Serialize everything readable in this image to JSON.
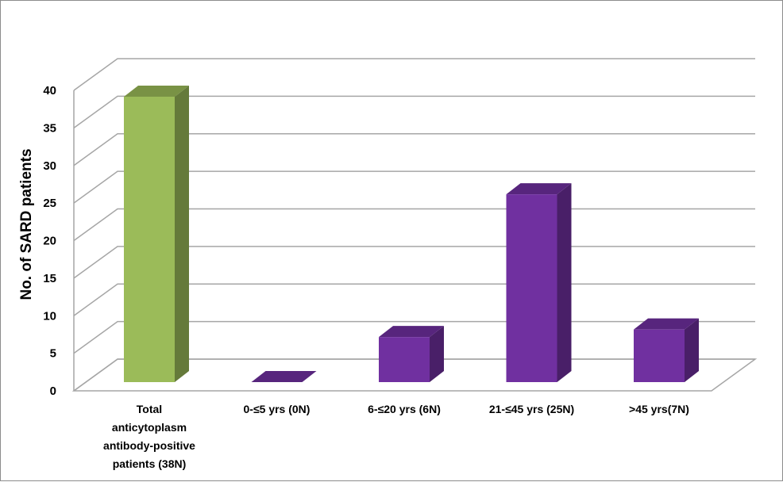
{
  "chart_data": {
    "type": "bar",
    "title": "",
    "xlabel": "",
    "ylabel": "No. of SARD patients",
    "ylim": [
      0,
      40
    ],
    "yticks": [
      "0",
      "5",
      "10",
      "15",
      "20",
      "25",
      "30",
      "35",
      "40"
    ],
    "grid": true,
    "legend": "none",
    "categories": [
      [
        "Total",
        "anticytoplasm",
        "antibody-positive",
        "patients (38N)"
      ],
      [
        "0-≤5 yrs (0N)"
      ],
      [
        "6-≤20 yrs (6N)"
      ],
      [
        "21-≤45 yrs (25N)"
      ],
      [
        ">45 yrs(7N)"
      ]
    ],
    "values": [
      38,
      0,
      6,
      25,
      7
    ],
    "colors": [
      "#9bbb59",
      "#7030a0",
      "#7030a0",
      "#7030a0",
      "#7030a0"
    ]
  }
}
